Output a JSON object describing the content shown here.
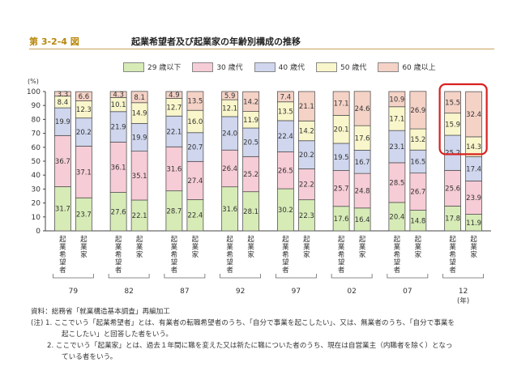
{
  "figure": {
    "number": "第 3-2-4 図",
    "title": "起業希望者及び起業家の年齢別構成の推移"
  },
  "chart_data": {
    "type": "bar",
    "stacked": true,
    "percent_stacked": true,
    "ylabel": "(%)",
    "xunit": "(年)",
    "ylim": [
      0,
      100
    ],
    "yticks": [
      0,
      10,
      20,
      30,
      40,
      50,
      60,
      70,
      80,
      90,
      100
    ],
    "years": [
      "79",
      "82",
      "87",
      "92",
      "97",
      "02",
      "07",
      "12"
    ],
    "groups": [
      "起業希望者",
      "起業家"
    ],
    "series": [
      {
        "name": "29 歳以下",
        "color": "#d7ebb7",
        "values": [
          [
            31.7,
            23.7
          ],
          [
            27.6,
            22.1
          ],
          [
            28.7,
            22.4
          ],
          [
            31.6,
            28.1
          ],
          [
            30.2,
            22.3
          ],
          [
            17.6,
            16.4
          ],
          [
            20.4,
            14.8
          ],
          [
            17.8,
            11.9
          ]
        ]
      },
      {
        "name": "30 歳代",
        "color": "#f6ccd6",
        "values": [
          [
            36.7,
            37.1
          ],
          [
            36.1,
            35.1
          ],
          [
            31.6,
            27.4
          ],
          [
            26.4,
            25.2
          ],
          [
            26.5,
            22.2
          ],
          [
            25.7,
            24.8
          ],
          [
            28.5,
            26.7
          ],
          [
            25.6,
            23.9
          ]
        ]
      },
      {
        "name": "40 歳代",
        "color": "#cfd6ee",
        "values": [
          [
            19.9,
            20.2
          ],
          [
            21.9,
            19.9
          ],
          [
            22.1,
            20.7
          ],
          [
            24.0,
            20.5
          ],
          [
            22.4,
            20.2
          ],
          [
            19.5,
            16.7
          ],
          [
            23.1,
            16.5
          ],
          [
            25.2,
            17.4
          ]
        ]
      },
      {
        "name": "50 歳代",
        "color": "#f9f6cb",
        "values": [
          [
            8.4,
            12.3
          ],
          [
            10.1,
            14.9
          ],
          [
            12.7,
            16.0
          ],
          [
            12.1,
            11.9
          ],
          [
            13.5,
            14.2
          ],
          [
            20.1,
            17.6
          ],
          [
            17.1,
            15.2
          ],
          [
            15.9,
            14.3
          ]
        ]
      },
      {
        "name": "60 歳以上",
        "color": "#f5d2c6",
        "values": [
          [
            3.3,
            6.6
          ],
          [
            4.3,
            8.1
          ],
          [
            4.9,
            13.5
          ],
          [
            5.9,
            14.2
          ],
          [
            7.4,
            21.1
          ],
          [
            17.1,
            24.6
          ],
          [
            10.9,
            26.9
          ],
          [
            15.5,
            32.4
          ]
        ]
      }
    ],
    "highlight": {
      "year": "12",
      "color": "#d92020"
    },
    "grid": false,
    "legend_position": "top"
  },
  "notes": {
    "source": "資料：総務省「就業構造基本調査」再編加工",
    "note1_a": "(注) 1. ここでいう「起業希望者」とは、有業者の転職希望者のうち、「自分で事業を起こしたい」、又は、無業者のうち、「自分で事業を",
    "note1_b": "起こしたい」と回答した者をいう。",
    "note2_a": "2. ここでいう「起業家」とは、過去１年間に職を変えた又は新たに職についた者のうち、現在は自営業主（内職者を除く）となっ",
    "note2_b": "ている者をいう。"
  }
}
